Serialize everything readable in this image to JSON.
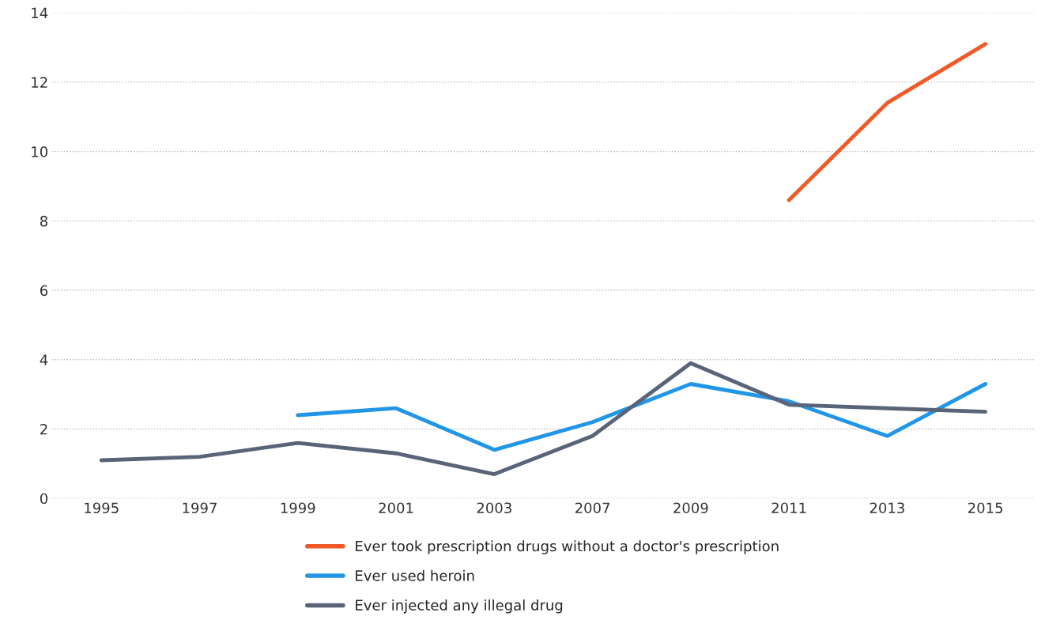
{
  "chart_data": {
    "type": "line",
    "categories": [
      "1995",
      "1997",
      "1999",
      "2001",
      "2003",
      "2007",
      "2009",
      "2011",
      "2013",
      "2015"
    ],
    "series": [
      {
        "name": "Ever took prescription drugs without a doctor's prescription",
        "color": "#f05a28",
        "values": [
          null,
          null,
          null,
          null,
          null,
          null,
          null,
          8.6,
          11.4,
          13.1
        ]
      },
      {
        "name": "Ever used heroin",
        "color": "#2196e6",
        "values": [
          null,
          null,
          2.4,
          2.6,
          1.4,
          2.2,
          3.3,
          2.8,
          1.8,
          3.3
        ]
      },
      {
        "name": "Ever injected any illegal drug",
        "color": "#5a6478",
        "values": [
          1.1,
          1.2,
          1.6,
          1.3,
          0.7,
          1.8,
          3.9,
          2.7,
          2.6,
          2.5
        ]
      }
    ],
    "ylim": [
      0,
      14
    ],
    "yticks": [
      0,
      2,
      4,
      6,
      8,
      10,
      12,
      14
    ],
    "grid": "y",
    "legend": "bottom",
    "marker": "none",
    "line_style": "solid"
  }
}
